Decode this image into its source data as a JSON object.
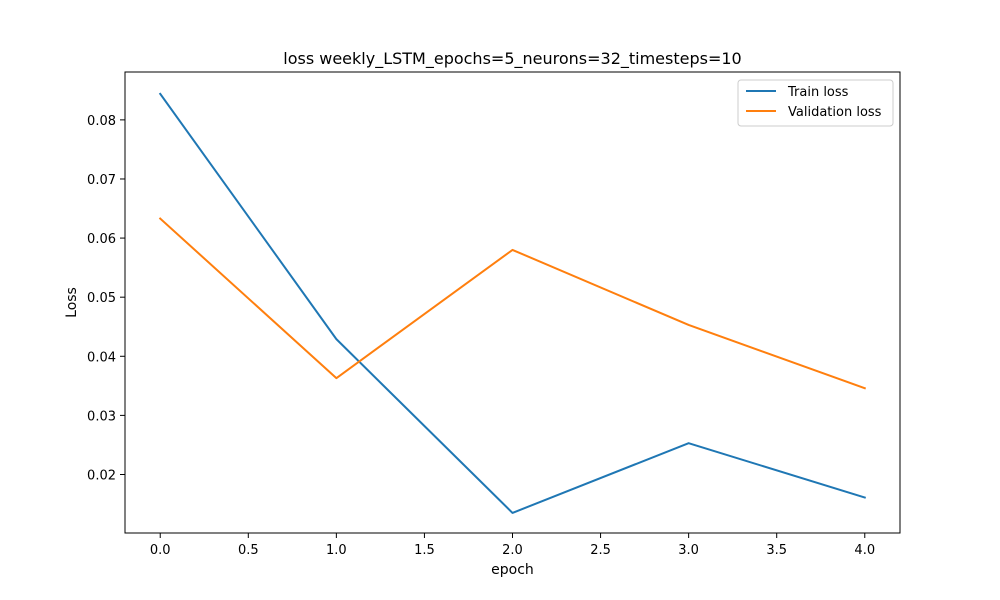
{
  "chart_data": {
    "type": "line",
    "title": "loss weekly_LSTM_epochs=5_neurons=32_timesteps=10",
    "xlabel": "epoch",
    "ylabel": "Loss",
    "x": [
      0,
      1,
      2,
      3,
      4
    ],
    "xticks": [
      0.0,
      0.5,
      1.0,
      1.5,
      2.0,
      2.5,
      3.0,
      3.5,
      4.0
    ],
    "xtick_labels": [
      "0.0",
      "0.5",
      "1.0",
      "1.5",
      "2.0",
      "2.5",
      "3.0",
      "3.5",
      "4.0"
    ],
    "yticks": [
      0.02,
      0.03,
      0.04,
      0.05,
      0.06,
      0.07,
      0.08
    ],
    "ytick_labels": [
      "0.02",
      "0.03",
      "0.04",
      "0.05",
      "0.06",
      "0.07",
      "0.08"
    ],
    "xlim": [
      -0.2,
      4.2
    ],
    "ylim": [
      0.0101,
      0.0881
    ],
    "grid": false,
    "legend_position": "top-right",
    "series": [
      {
        "name": "Train loss",
        "color": "#1f77b4",
        "values": [
          0.0844,
          0.0429,
          0.0135,
          0.0253,
          0.0161
        ]
      },
      {
        "name": "Validation loss",
        "color": "#ff7f0e",
        "values": [
          0.0633,
          0.0363,
          0.058,
          0.0453,
          0.0346
        ]
      }
    ]
  }
}
